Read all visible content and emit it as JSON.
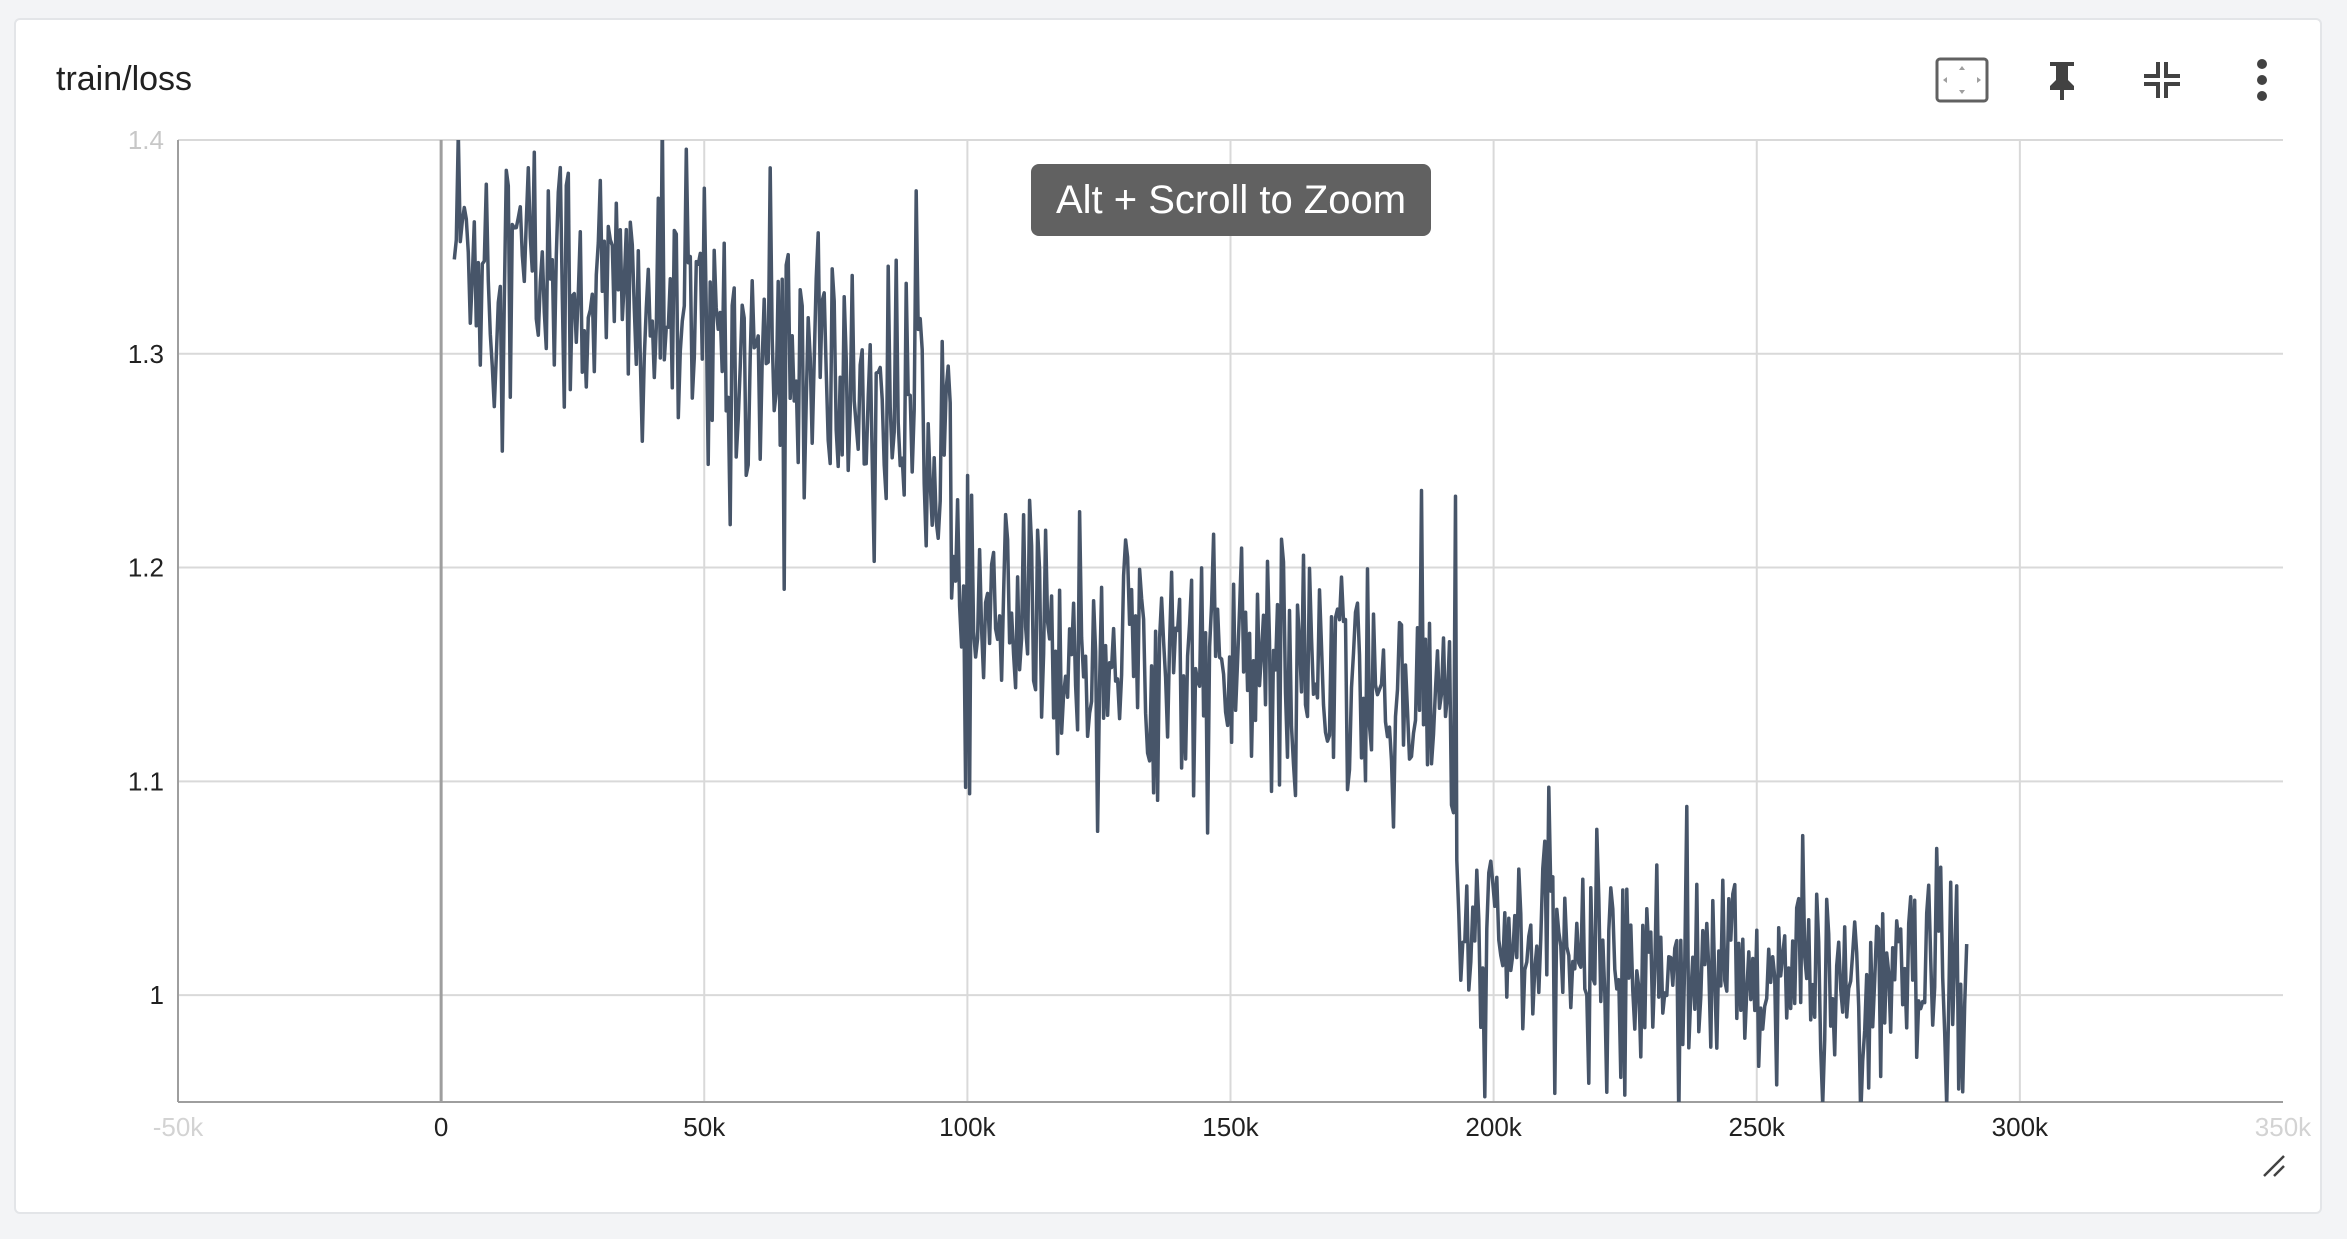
{
  "card": {
    "title": "train/loss"
  },
  "toolbar": {
    "icons": [
      "fit-domain-icon",
      "pin-icon",
      "collapse-icon",
      "more-vert-icon"
    ]
  },
  "tooltip": {
    "text": "Alt + Scroll to Zoom"
  },
  "colors": {
    "line": "#475569",
    "grid": "#d9d9d9",
    "axis": "#9e9e9e",
    "tooltip_bg": "#616161"
  },
  "chart_data": {
    "type": "line",
    "title": "train/loss",
    "xlabel": "",
    "ylabel": "",
    "xlim": [
      -50000,
      350000
    ],
    "ylim": [
      0.95,
      1.4
    ],
    "grid": true,
    "x_ticks": [
      -50000,
      0,
      50000,
      100000,
      150000,
      200000,
      250000,
      300000,
      350000
    ],
    "x_tick_labels": [
      "-50k",
      "0",
      "50k",
      "100k",
      "150k",
      "200k",
      "250k",
      "300k",
      "350k"
    ],
    "y_ticks": [
      1,
      1.1,
      1.2,
      1.3,
      1.4
    ],
    "y_tick_labels": [
      "1",
      "1.1",
      "1.2",
      "1.3",
      "1.4"
    ],
    "series": [
      {
        "segments": [
          {
            "x_start": 2500,
            "x_end": 97000,
            "y_start": 1.355,
            "y_end": 1.265,
            "spread": 0.035
          },
          {
            "x_start": 97000,
            "x_end": 193000,
            "y_start": 1.175,
            "y_end": 1.135,
            "spread": 0.03
          },
          {
            "x_start": 193000,
            "x_end": 290000,
            "y_start": 1.025,
            "y_end": 1.0,
            "spread": 0.025
          }
        ],
        "approx_points": [
          [
            2500,
            1.39
          ],
          [
            5000,
            1.36
          ],
          [
            10000,
            1.33
          ],
          [
            15000,
            1.34
          ],
          [
            20000,
            1.31
          ],
          [
            25000,
            1.33
          ],
          [
            30000,
            1.3
          ],
          [
            35000,
            1.31
          ],
          [
            40000,
            1.3
          ],
          [
            45000,
            1.29
          ],
          [
            50000,
            1.3
          ],
          [
            55000,
            1.28
          ],
          [
            60000,
            1.29
          ],
          [
            65000,
            1.27
          ],
          [
            70000,
            1.28
          ],
          [
            75000,
            1.27
          ],
          [
            80000,
            1.26
          ],
          [
            85000,
            1.27
          ],
          [
            90000,
            1.26
          ],
          [
            95000,
            1.27
          ],
          [
            97000,
            1.18
          ],
          [
            100000,
            1.17
          ],
          [
            105000,
            1.17
          ],
          [
            110000,
            1.18
          ],
          [
            115000,
            1.16
          ],
          [
            120000,
            1.17
          ],
          [
            125000,
            1.16
          ],
          [
            130000,
            1.17
          ],
          [
            135000,
            1.15
          ],
          [
            140000,
            1.16
          ],
          [
            145000,
            1.15
          ],
          [
            150000,
            1.15
          ],
          [
            155000,
            1.14
          ],
          [
            160000,
            1.15
          ],
          [
            165000,
            1.13
          ],
          [
            170000,
            1.14
          ],
          [
            175000,
            1.13
          ],
          [
            180000,
            1.14
          ],
          [
            185000,
            1.13
          ],
          [
            190000,
            1.12
          ],
          [
            193000,
            1.1
          ],
          [
            195000,
            1.02
          ],
          [
            200000,
            1.02
          ],
          [
            205000,
            1.01
          ],
          [
            210000,
            1.02
          ],
          [
            215000,
            1.01
          ],
          [
            220000,
            1.0
          ],
          [
            225000,
            1.01
          ],
          [
            230000,
            1.0
          ],
          [
            235000,
            1.01
          ],
          [
            240000,
            1.0
          ],
          [
            245000,
            1.0
          ],
          [
            250000,
            1.0
          ],
          [
            255000,
            1.0
          ],
          [
            260000,
            1.0
          ],
          [
            265000,
            1.0
          ],
          [
            270000,
            1.0
          ],
          [
            275000,
            1.0
          ],
          [
            280000,
            0.99
          ],
          [
            285000,
            1.0
          ],
          [
            290000,
            1.0
          ]
        ]
      }
    ]
  }
}
